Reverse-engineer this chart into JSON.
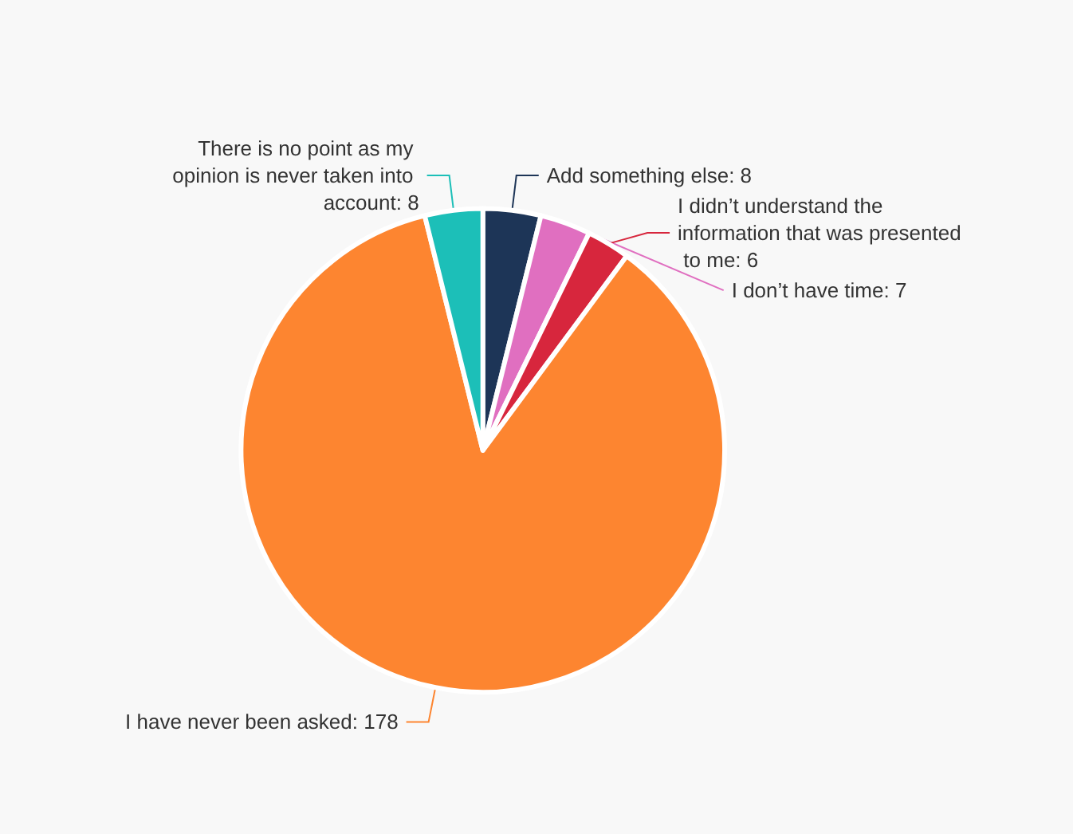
{
  "chart_data": {
    "type": "pie",
    "categories": [
      "Add something else",
      "I don’t have time",
      "I didn’t understand the information that was presented to me",
      "I have never been asked",
      "There is no point as my opinion is never taken into account"
    ],
    "values": [
      8,
      7,
      6,
      178,
      8
    ],
    "value_labels": [
      ": 8",
      ": 7",
      ": 6",
      ": 178",
      ": 8"
    ],
    "colors": [
      "#1d3557",
      "#e06fc0",
      "#d7263d",
      "#fd8530",
      "#1cbfb8"
    ],
    "legend": false
  }
}
